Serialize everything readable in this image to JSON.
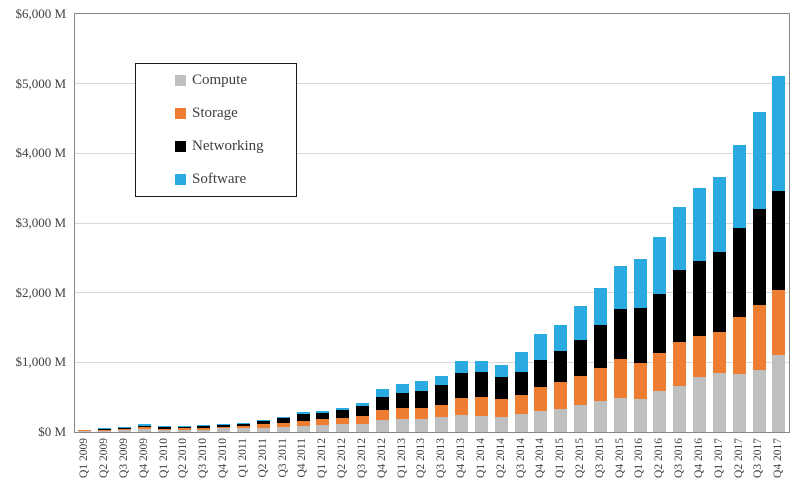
{
  "chart_data": {
    "type": "bar",
    "stacked": true,
    "title": "",
    "xlabel": "",
    "ylabel": "",
    "ylim": [
      0,
      6000
    ],
    "grid": true,
    "legend_position": "inside-top-left",
    "y_ticks": [
      {
        "value": 0,
        "label": "$0 M"
      },
      {
        "value": 1000,
        "label": "$1,000 M"
      },
      {
        "value": 2000,
        "label": "$2,000 M"
      },
      {
        "value": 3000,
        "label": "$3,000 M"
      },
      {
        "value": 4000,
        "label": "$4,000 M"
      },
      {
        "value": 5000,
        "label": "$5,000 M"
      },
      {
        "value": 6000,
        "label": "$6,000 M"
      }
    ],
    "categories": [
      "Q1 2009",
      "Q2 2009",
      "Q3 2009",
      "Q4 2009",
      "Q1 2010",
      "Q2 2010",
      "Q3 2010",
      "Q4 2010",
      "Q1 2011",
      "Q2 2011",
      "Q3 2011",
      "Q4 2011",
      "Q1 2012",
      "Q2 2012",
      "Q3 2012",
      "Q4 2012",
      "Q1 2013",
      "Q2 2013",
      "Q3 2013",
      "Q4 2013",
      "Q1 2014",
      "Q2 2014",
      "Q3 2014",
      "Q4 2014",
      "Q1 2015",
      "Q2 2015",
      "Q3 2015",
      "Q4 2015",
      "Q1 2016",
      "Q2 2016",
      "Q3 2016",
      "Q4 2016",
      "Q1 2017",
      "Q2 2017",
      "Q3 2017",
      "Q4 2017"
    ],
    "series": [
      {
        "name": "Compute",
        "color": "#BFBFBF",
        "values": [
          12,
          18,
          24,
          40,
          30,
          33,
          36,
          52,
          55,
          63,
          77,
          91,
          96,
          111,
          120,
          168,
          190,
          192,
          216,
          245,
          231,
          216,
          264,
          298,
          336,
          390,
          447,
          486,
          472,
          592,
          660,
          790,
          846,
          837,
          895,
          1101
        ]
      },
      {
        "name": "Storage",
        "color": "#ED7D31",
        "values": [
          10,
          14,
          17,
          28,
          20,
          22,
          24,
          27,
          30,
          48,
          58,
          73,
          87,
          96,
          111,
          144,
          155,
          159,
          174,
          250,
          274,
          255,
          270,
          351,
          386,
          418,
          472,
          563,
          514,
          538,
          633,
          590,
          591,
          817,
          928,
          938
        ]
      },
      {
        "name": "Networking",
        "color": "#000000",
        "values": [
          8,
          12,
          15,
          25,
          18,
          20,
          21,
          25,
          32,
          43,
          62,
          96,
          96,
          106,
          149,
          192,
          212,
          241,
          288,
          347,
          351,
          313,
          322,
          386,
          437,
          515,
          611,
          722,
          794,
          857,
          1035,
          1068,
          1140,
          1275,
          1385,
          1419
        ]
      },
      {
        "name": "Software",
        "color": "#29ABE2",
        "values": [
          5,
          9,
          11,
          18,
          14,
          15,
          15,
          16,
          18,
          19,
          24,
          29,
          29,
          29,
          34,
          112,
          133,
          144,
          130,
          183,
          169,
          183,
          298,
          375,
          371,
          481,
          543,
          614,
          698,
          808,
          899,
          1059,
          1088,
          1188,
          1390,
          1659
        ]
      }
    ],
    "style": {
      "plot_border": "#868686",
      "gridline": "#D9D9D9",
      "axis_text": "#404040",
      "background": "#FFFFFF",
      "legend_border": "#1A1A1A"
    }
  }
}
